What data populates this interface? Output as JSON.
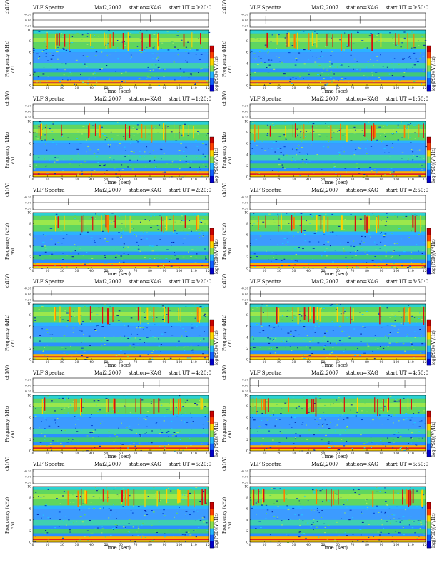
{
  "header": {
    "title": "VLF Spectra",
    "date": "Mai2,2007",
    "station": "station=KAG"
  },
  "axes": {
    "ch_label": "ch1(V)",
    "freq_label": "Frequency (kHz)",
    "ch1_label": "ch1",
    "time_label": "Time (sec)",
    "colorbar_label": "log(PSD)(V²/Hz)",
    "x_ticks": [
      "0",
      "10",
      "20",
      "30",
      "40",
      "50",
      "60",
      "70",
      "80",
      "90",
      "100",
      "110",
      "120"
    ],
    "y_ticks": [
      "0",
      "2",
      "4",
      "6",
      "8",
      "10"
    ],
    "ch_ticks": [
      "-0.20",
      "0.00",
      "0.20"
    ]
  },
  "colors": {
    "low": "#0000c8",
    "mid": "#22b5ff",
    "green": "#55d655",
    "high": "#ffd700",
    "peak": "#c80000"
  },
  "chart_data": [
    {
      "type": "heatmap",
      "start_ut": "start UT =0:20:0",
      "xlim": [
        0,
        120
      ],
      "ylim": [
        0,
        10
      ]
    },
    {
      "type": "heatmap",
      "start_ut": "start UT =0:50:0",
      "xlim": [
        0,
        120
      ],
      "ylim": [
        0,
        10
      ]
    },
    {
      "type": "heatmap",
      "start_ut": "start UT =1:20:0",
      "xlim": [
        0,
        120
      ],
      "ylim": [
        0,
        10
      ]
    },
    {
      "type": "heatmap",
      "start_ut": "start UT =1:50:0",
      "xlim": [
        0,
        120
      ],
      "ylim": [
        0,
        10
      ]
    },
    {
      "type": "heatmap",
      "start_ut": "start UT =2:20:0",
      "xlim": [
        0,
        120
      ],
      "ylim": [
        0,
        10
      ]
    },
    {
      "type": "heatmap",
      "start_ut": "start UT =2:50:0",
      "xlim": [
        0,
        120
      ],
      "ylim": [
        0,
        10
      ]
    },
    {
      "type": "heatmap",
      "start_ut": "start UT =3:20:0",
      "xlim": [
        0,
        120
      ],
      "ylim": [
        0,
        10
      ]
    },
    {
      "type": "heatmap",
      "start_ut": "start UT =3:50:0",
      "xlim": [
        0,
        120
      ],
      "ylim": [
        0,
        10
      ]
    },
    {
      "type": "heatmap",
      "start_ut": "start UT =4:20:0",
      "xlim": [
        0,
        120
      ],
      "ylim": [
        0,
        10
      ]
    },
    {
      "type": "heatmap",
      "start_ut": "start UT =4:50:0",
      "xlim": [
        0,
        120
      ],
      "ylim": [
        0,
        10
      ]
    },
    {
      "type": "heatmap",
      "start_ut": "start UT =5:20:0",
      "xlim": [
        0,
        120
      ],
      "ylim": [
        0,
        10
      ]
    },
    {
      "type": "heatmap",
      "start_ut": "start UT =5:50:0",
      "xlim": [
        0,
        120
      ],
      "ylim": [
        0,
        10
      ]
    }
  ]
}
